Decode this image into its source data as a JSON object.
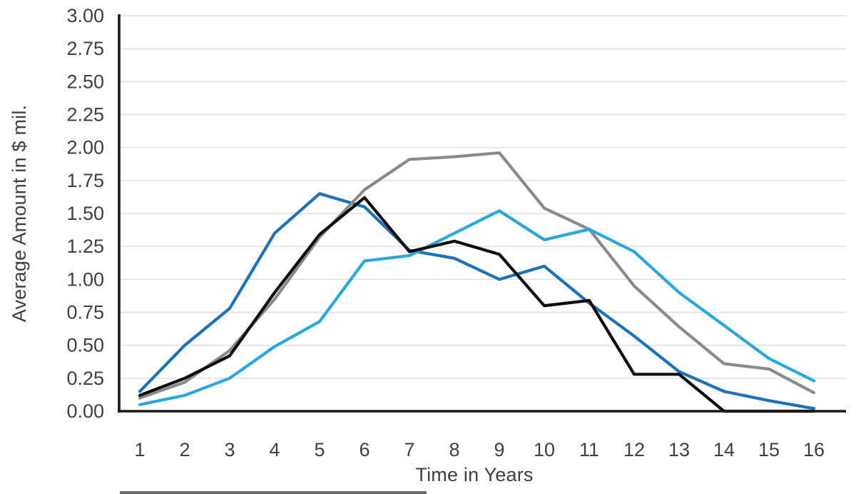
{
  "chart_data": {
    "type": "line",
    "title": "",
    "xlabel": "Time in Years",
    "ylabel": "Average Amount in $ mil.",
    "x": [
      1,
      2,
      3,
      4,
      5,
      6,
      7,
      8,
      9,
      10,
      11,
      12,
      13,
      14,
      15,
      16
    ],
    "x_tick_labels": [
      "1",
      "2",
      "3",
      "4",
      "5",
      "6",
      "7",
      "8",
      "9",
      "10",
      "11",
      "12",
      "13",
      "14",
      "15",
      "16"
    ],
    "y_tick_labels": [
      "0.00",
      "0.25",
      "0.50",
      "0.75",
      "1.00",
      "1.25",
      "1.50",
      "1.75",
      "2.00",
      "2.25",
      "2.50",
      "2.75",
      "3.00"
    ],
    "y_tick_values": [
      0,
      0.25,
      0.5,
      0.75,
      1.0,
      1.25,
      1.5,
      1.75,
      2.0,
      2.25,
      2.5,
      2.75,
      3.0
    ],
    "ylim": [
      0,
      3
    ],
    "grid": "horizontal",
    "legend": "none",
    "series": [
      {
        "name": "dark-blue-series",
        "color": "#1B72B9",
        "values": [
          0.15,
          0.5,
          0.78,
          1.35,
          1.65,
          1.55,
          1.22,
          1.16,
          1.0,
          1.1,
          0.82,
          0.57,
          0.3,
          0.15,
          0.08,
          0.02
        ]
      },
      {
        "name": "gray-series",
        "color": "#8A8A8A",
        "values": [
          0.1,
          0.22,
          0.46,
          0.85,
          1.32,
          1.68,
          1.91,
          1.93,
          1.96,
          1.54,
          1.38,
          0.95,
          0.64,
          0.36,
          0.32,
          0.14
        ]
      },
      {
        "name": "light-blue-series",
        "color": "#29A8E0",
        "values": [
          0.05,
          0.12,
          0.25,
          0.49,
          0.68,
          1.14,
          1.18,
          1.35,
          1.52,
          1.3,
          1.38,
          1.21,
          0.9,
          0.65,
          0.4,
          0.23
        ]
      },
      {
        "name": "black-series",
        "color": "#0D0D0D",
        "values": [
          0.12,
          0.25,
          0.42,
          0.9,
          1.34,
          1.62,
          1.21,
          1.29,
          1.19,
          0.8,
          0.84,
          0.28,
          0.28,
          0.0,
          0.0,
          0.0
        ]
      }
    ],
    "colors": {
      "axis_line": "#1A1A1A",
      "gridline": "#DEDEDE",
      "tick_label": "#3F3F3F"
    }
  }
}
